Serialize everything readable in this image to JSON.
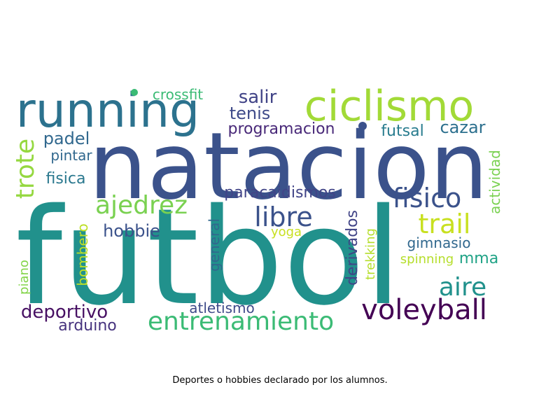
{
  "caption": "Deportes o hobbies declarado por los alumnos.",
  "words": [
    {
      "text": "futbol",
      "color": "#21918c"
    },
    {
      "text": "natacion",
      "color": "#3b528b"
    },
    {
      "text": "running",
      "color": "#2c728e"
    },
    {
      "text": "ciclismo",
      "color": "#a2da37"
    },
    {
      "text": "voleyball",
      "color": "#440154"
    },
    {
      "text": "entrenamiento",
      "color": "#3bbb75"
    },
    {
      "text": "fisico",
      "color": "#3b528b"
    },
    {
      "text": "ajedrez",
      "color": "#7ad151"
    },
    {
      "text": "libre",
      "color": "#3b528b"
    },
    {
      "text": "trail",
      "color": "#c8e020"
    },
    {
      "text": "aire",
      "color": "#21918c"
    },
    {
      "text": "trote",
      "color": "#95d840"
    },
    {
      "text": "deportivo",
      "color": "#471063"
    },
    {
      "text": "salir",
      "color": "#414487"
    },
    {
      "text": "tenis",
      "color": "#3e4a89"
    },
    {
      "text": "programacion",
      "color": "#482878"
    },
    {
      "text": "futsal",
      "color": "#287c8e"
    },
    {
      "text": "cazar",
      "color": "#2d708e"
    },
    {
      "text": "padel",
      "color": "#31688e"
    },
    {
      "text": "pintar",
      "color": "#31688e"
    },
    {
      "text": "fisica",
      "color": "#2a788e"
    },
    {
      "text": "crossfit",
      "color": "#3bbb75"
    },
    {
      "text": "paracaidismos",
      "color": "#414487"
    },
    {
      "text": "hobbie",
      "color": "#3b528b"
    },
    {
      "text": "arduino",
      "color": "#46337e"
    },
    {
      "text": "atletismo",
      "color": "#3e4a89"
    },
    {
      "text": "gimnasio",
      "color": "#31688e"
    },
    {
      "text": "mma",
      "color": "#20a386"
    },
    {
      "text": "spinning",
      "color": "#b5de2b"
    },
    {
      "text": "actividad",
      "color": "#7ad151"
    },
    {
      "text": "yoga",
      "color": "#c8e020"
    },
    {
      "text": "general",
      "color": "#31688e"
    },
    {
      "text": "derivados",
      "color": "#414487"
    },
    {
      "text": "trekking",
      "color": "#b5de2b"
    },
    {
      "text": "bombero",
      "color": "#bddf26"
    },
    {
      "text": "piano",
      "color": "#84d44b"
    }
  ]
}
